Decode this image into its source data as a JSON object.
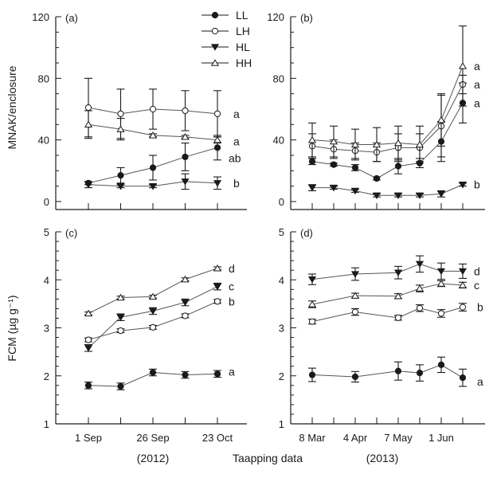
{
  "figure": {
    "x_axis_title": "Taapping data",
    "year_labels": [
      "(2012)",
      "(2013)"
    ]
  },
  "legend": {
    "placement": "top-right of panel (a)",
    "entries": [
      {
        "name": "LL",
        "marker": "filled-circle"
      },
      {
        "name": "LH",
        "marker": "open-circle"
      },
      {
        "name": "HL",
        "marker": "filled-down-triangle"
      },
      {
        "name": "HH",
        "marker": "open-up-triangle"
      }
    ]
  },
  "chart_data": [
    {
      "type": "line",
      "panel": "(a)",
      "ylabel": "MNAK/enclosure",
      "ylim": [
        0,
        120
      ],
      "yticks": [
        0,
        40,
        80,
        120
      ],
      "y_minor_step": 10,
      "x_ticks": 5,
      "x_tick_labels": [
        "",
        "",
        "",
        "",
        ""
      ],
      "x_positions": [
        1,
        2,
        3,
        4,
        5
      ],
      "series": [
        {
          "name": "LL",
          "values": [
            12,
            17,
            22,
            29,
            35
          ],
          "errors": [
            1,
            5,
            8,
            9,
            8
          ],
          "letter": "a_b",
          "letter_text": "ab"
        },
        {
          "name": "LH",
          "values": [
            61,
            57,
            60,
            59,
            57
          ],
          "errors": [
            19,
            16,
            13,
            13,
            15
          ],
          "letter_text": "a"
        },
        {
          "name": "HL",
          "values": [
            11,
            10,
            10,
            13,
            12
          ],
          "errors": [
            2,
            1,
            1,
            5,
            4
          ],
          "letter_text": "b"
        },
        {
          "name": "HH",
          "values": [
            50,
            47,
            43,
            42,
            40
          ],
          "errors": [
            9,
            7,
            1,
            1,
            2
          ],
          "letter_text": "a"
        }
      ]
    },
    {
      "type": "line",
      "panel": "(b)",
      "ylabel": "",
      "ylim": [
        0,
        120
      ],
      "yticks": [
        0,
        40,
        80,
        120
      ],
      "y_minor_step": 10,
      "x_ticks": 8,
      "x_tick_labels": [
        "",
        "",
        "",
        "",
        "",
        "",
        "",
        ""
      ],
      "x_positions": [
        1,
        2,
        3,
        4,
        5,
        6,
        7,
        8
      ],
      "series": [
        {
          "name": "LL",
          "values": [
            26,
            24,
            22,
            15,
            23,
            25,
            39,
            64
          ],
          "errors": [
            2,
            1,
            2,
            1,
            5,
            3,
            13,
            13
          ],
          "letter_text": "a"
        },
        {
          "name": "LH",
          "values": [
            36,
            34,
            33,
            32,
            35,
            35,
            49,
            76
          ],
          "errors": [
            8,
            6,
            5,
            6,
            9,
            9,
            20,
            6
          ],
          "letter_text": "a"
        },
        {
          "name": "HL",
          "values": [
            9,
            9,
            7,
            4,
            4,
            4,
            5,
            11
          ],
          "errors": [
            2,
            1,
            1,
            1,
            1,
            1,
            2,
            1
          ],
          "letter_text": "b"
        },
        {
          "name": "HH",
          "values": [
            40,
            39,
            37,
            37,
            38,
            37,
            53,
            88
          ],
          "errors": [
            11,
            10,
            10,
            11,
            11,
            12,
            17,
            26
          ],
          "letter_text": "a"
        }
      ]
    },
    {
      "type": "line",
      "panel": "(c)",
      "ylabel": "FCM (µg g⁻¹)",
      "ylim": [
        1,
        5
      ],
      "yticks": [
        1,
        2,
        3,
        4,
        5
      ],
      "y_minor_step": 0.2,
      "x_ticks": 5,
      "x_tick_labels": [
        "1 Sep",
        "",
        "26 Sep",
        "",
        "23 Oct"
      ],
      "x_positions": [
        1,
        2,
        3,
        4,
        5
      ],
      "series": [
        {
          "name": "LL",
          "values": [
            1.8,
            1.78,
            2.07,
            2.02,
            2.04
          ],
          "errors": [
            0.07,
            0.07,
            0.07,
            0.07,
            0.07
          ],
          "letter_text": "a"
        },
        {
          "name": "LH",
          "values": [
            2.75,
            2.94,
            3.01,
            3.25,
            3.55
          ],
          "errors": [
            0.04,
            0.04,
            0.04,
            0.04,
            0.04
          ],
          "letter_text": "b"
        },
        {
          "name": "HL",
          "values": [
            2.58,
            3.22,
            3.35,
            3.53,
            3.86
          ],
          "errors": [
            0.07,
            0.07,
            0.07,
            0.07,
            0.07
          ],
          "letter_text": "c"
        },
        {
          "name": "HH",
          "values": [
            3.3,
            3.63,
            3.65,
            4.01,
            4.24
          ],
          "errors": [
            0.03,
            0.03,
            0.03,
            0.03,
            0.03
          ],
          "letter_text": "d"
        }
      ]
    },
    {
      "type": "line",
      "panel": "(d)",
      "ylabel": "",
      "ylim": [
        1,
        5
      ],
      "yticks": [
        1,
        2,
        3,
        4,
        5
      ],
      "y_minor_step": 0.2,
      "x_ticks": 8,
      "x_tick_labels": [
        "8 Mar",
        "",
        "4 Apr",
        "",
        "7 May",
        "",
        "1 Jun",
        ""
      ],
      "x_positions": [
        1,
        3,
        5,
        6,
        7,
        8
      ],
      "series": [
        {
          "name": "LL",
          "values": [
            2.02,
            1.98,
            2.1,
            2.06,
            2.23,
            1.96
          ],
          "errors": [
            0.14,
            0.11,
            0.19,
            0.17,
            0.16,
            0.18
          ],
          "letter_text": "a"
        },
        {
          "name": "LH",
          "values": [
            3.13,
            3.33,
            3.21,
            3.41,
            3.3,
            3.43
          ],
          "errors": [
            0.05,
            0.07,
            0.05,
            0.07,
            0.08,
            0.08
          ],
          "letter_text": "b"
        },
        {
          "name": "HL",
          "values": [
            4.01,
            4.12,
            4.15,
            4.33,
            4.18,
            4.18
          ],
          "errors": [
            0.11,
            0.13,
            0.13,
            0.17,
            0.17,
            0.15
          ],
          "letter_text": "d"
        },
        {
          "name": "HH",
          "values": [
            3.49,
            3.67,
            3.66,
            3.82,
            3.92,
            3.89
          ],
          "errors": [
            0.07,
            0.05,
            0.05,
            0.07,
            0.06,
            0.06
          ],
          "letter_text": "c"
        }
      ]
    }
  ]
}
